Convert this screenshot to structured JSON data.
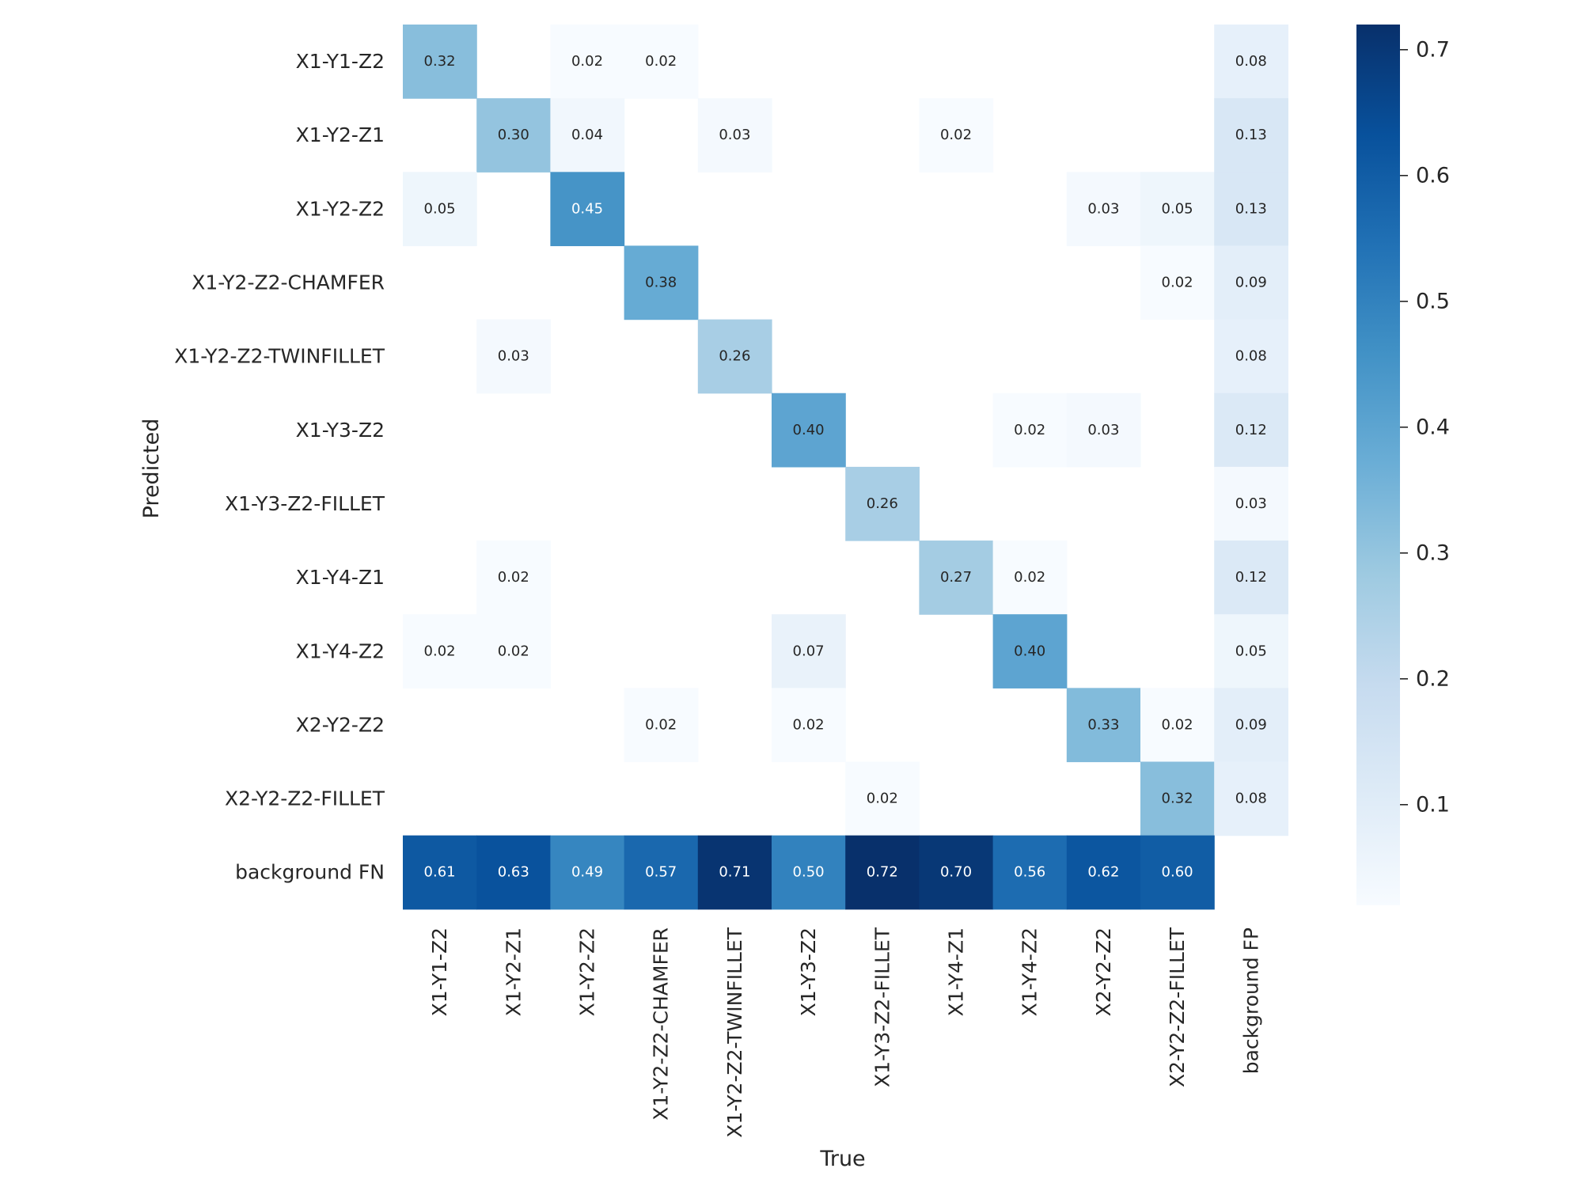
{
  "chart_data": {
    "type": "heatmap",
    "title": "",
    "xlabel": "True",
    "ylabel": "Predicted",
    "x_categories": [
      "X1-Y1-Z2",
      "X1-Y2-Z1",
      "X1-Y2-Z2",
      "X1-Y2-Z2-CHAMFER",
      "X1-Y2-Z2-TWINFILLET",
      "X1-Y3-Z2",
      "X1-Y3-Z2-FILLET",
      "X1-Y4-Z1",
      "X1-Y4-Z2",
      "X2-Y2-Z2",
      "X2-Y2-Z2-FILLET",
      "background FP"
    ],
    "y_categories": [
      "X1-Y1-Z2",
      "X1-Y2-Z1",
      "X1-Y2-Z2",
      "X1-Y2-Z2-CHAMFER",
      "X1-Y2-Z2-TWINFILLET",
      "X1-Y3-Z2",
      "X1-Y3-Z2-FILLET",
      "X1-Y4-Z1",
      "X1-Y4-Z2",
      "X2-Y2-Z2",
      "X2-Y2-Z2-FILLET",
      "background FN"
    ],
    "values": [
      [
        0.32,
        null,
        0.02,
        0.02,
        null,
        null,
        null,
        null,
        null,
        null,
        null,
        0.08
      ],
      [
        null,
        0.3,
        0.04,
        null,
        0.03,
        null,
        null,
        0.02,
        null,
        null,
        null,
        0.13
      ],
      [
        0.05,
        null,
        0.45,
        null,
        null,
        null,
        null,
        null,
        null,
        0.03,
        0.05,
        0.13
      ],
      [
        null,
        null,
        null,
        0.38,
        null,
        null,
        null,
        null,
        null,
        null,
        0.02,
        0.09
      ],
      [
        null,
        0.03,
        null,
        null,
        0.26,
        null,
        null,
        null,
        null,
        null,
        null,
        0.08
      ],
      [
        null,
        null,
        null,
        null,
        null,
        0.4,
        null,
        null,
        0.02,
        0.03,
        null,
        0.12
      ],
      [
        null,
        null,
        null,
        null,
        null,
        null,
        0.26,
        null,
        null,
        null,
        null,
        0.03
      ],
      [
        null,
        0.02,
        null,
        null,
        null,
        null,
        null,
        0.27,
        0.02,
        null,
        null,
        0.12
      ],
      [
        0.02,
        0.02,
        null,
        null,
        null,
        0.07,
        null,
        null,
        0.4,
        null,
        null,
        0.05
      ],
      [
        null,
        null,
        null,
        0.02,
        null,
        0.02,
        null,
        null,
        null,
        0.33,
        0.02,
        0.09
      ],
      [
        null,
        null,
        null,
        null,
        null,
        null,
        0.02,
        null,
        null,
        null,
        0.32,
        0.08
      ],
      [
        0.61,
        0.63,
        0.49,
        0.57,
        0.71,
        0.5,
        0.72,
        0.7,
        0.56,
        0.62,
        0.6,
        null
      ]
    ],
    "colormap": "Blues",
    "vmin": 0.02,
    "vmax": 0.72,
    "colorbar_ticks": [
      0.1,
      0.2,
      0.3,
      0.4,
      0.5,
      0.6,
      0.7
    ],
    "colorbar_tick_labels": [
      "0.1",
      "0.2",
      "0.3",
      "0.4",
      "0.5",
      "0.6",
      "0.7"
    ],
    "colors": {
      "text_dark": "#262626",
      "text_light": "#ffffff",
      "axis_text": "#262626",
      "cmap_stops": [
        "#f7fbff",
        "#deebf7",
        "#c6dbef",
        "#9ecae1",
        "#6baed6",
        "#4292c6",
        "#2171b5",
        "#08519c",
        "#08306b"
      ]
    }
  }
}
